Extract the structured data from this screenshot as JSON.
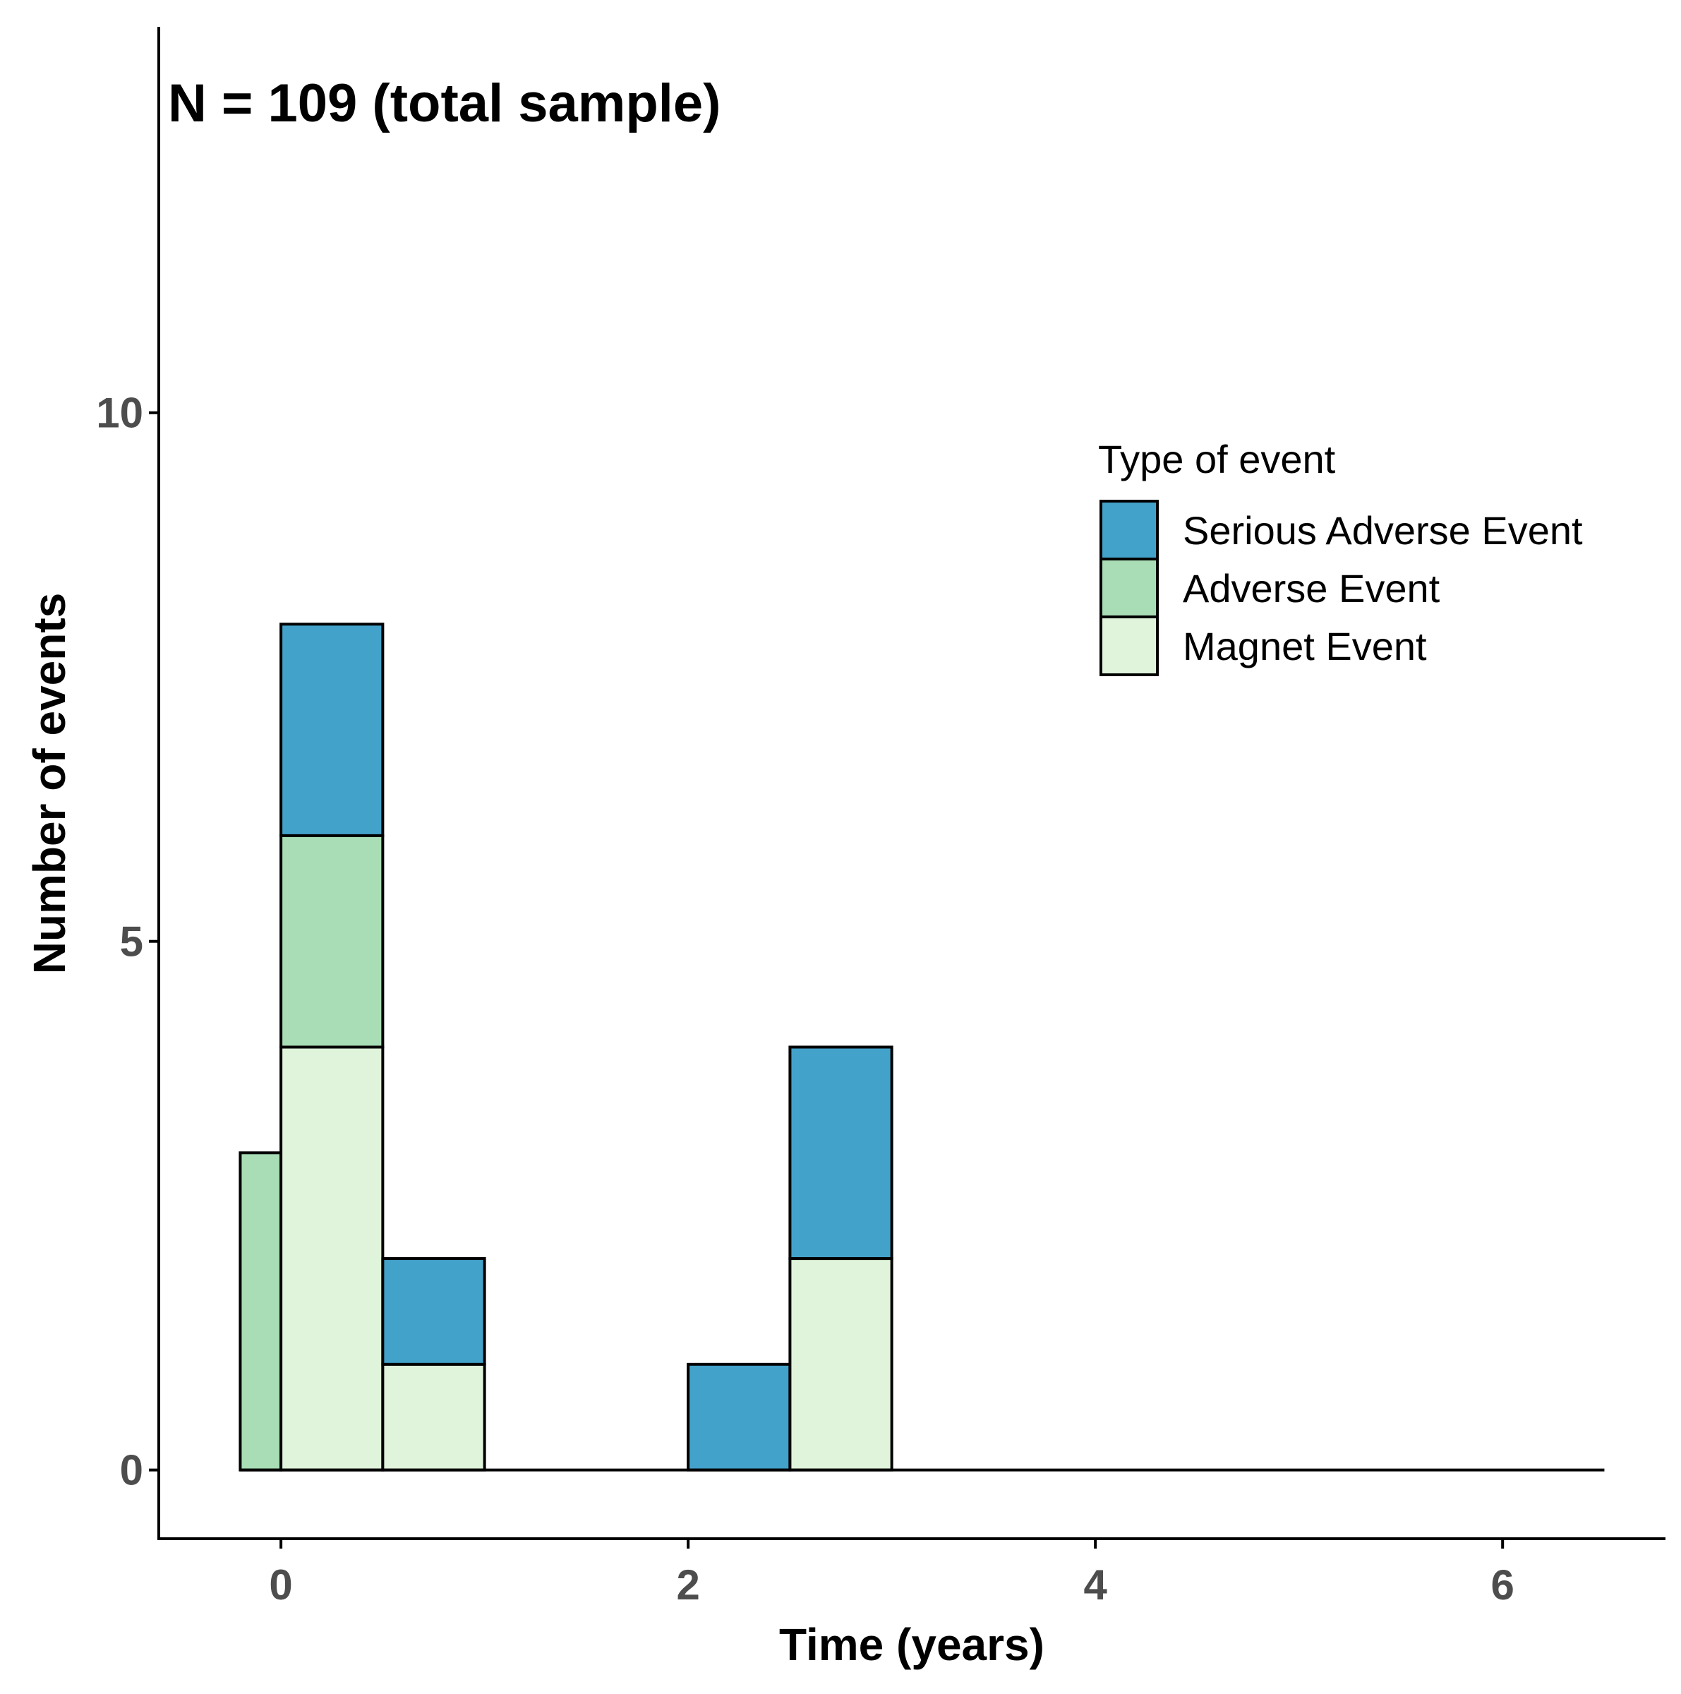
{
  "chart_data": {
    "type": "bar",
    "stacked": true,
    "annotation": "N = 109 (total sample)",
    "xlabel": "Time (years)",
    "ylabel": "Number of events",
    "xlim": [
      -0.6,
      6.8
    ],
    "ylim": [
      -0.65,
      13.65
    ],
    "x_ticks": [
      0,
      2,
      4,
      6
    ],
    "y_ticks": [
      0,
      5,
      10
    ],
    "x_tick_labels": [
      "0",
      "2",
      "4",
      "6"
    ],
    "y_tick_labels": [
      "0",
      "5",
      "10"
    ],
    "baseline": {
      "y": 0,
      "x_from": -0.2,
      "x_to": 6.5
    },
    "legend": {
      "title": "Type of event",
      "position": "right",
      "entries": [
        "Serious Adverse Event",
        "Adverse Event",
        "Magnet Event"
      ]
    },
    "colors": {
      "Serious Adverse Event": "#43a2ca",
      "Adverse Event": "#a8ddb5",
      "Magnet Event": "#e0f3db"
    },
    "bins": [
      {
        "x0": -0.2,
        "x1": 0.0,
        "Magnet Event": 0,
        "Adverse Event": 3,
        "Serious Adverse Event": 0
      },
      {
        "x0": 0.0,
        "x1": 0.5,
        "Magnet Event": 4,
        "Adverse Event": 2,
        "Serious Adverse Event": 2
      },
      {
        "x0": 0.5,
        "x1": 1.0,
        "Magnet Event": 1,
        "Adverse Event": 0,
        "Serious Adverse Event": 1
      },
      {
        "x0": 2.0,
        "x1": 2.5,
        "Magnet Event": 0,
        "Adverse Event": 0,
        "Serious Adverse Event": 1
      },
      {
        "x0": 2.5,
        "x1": 3.0,
        "Magnet Event": 2,
        "Adverse Event": 0,
        "Serious Adverse Event": 2
      }
    ]
  }
}
